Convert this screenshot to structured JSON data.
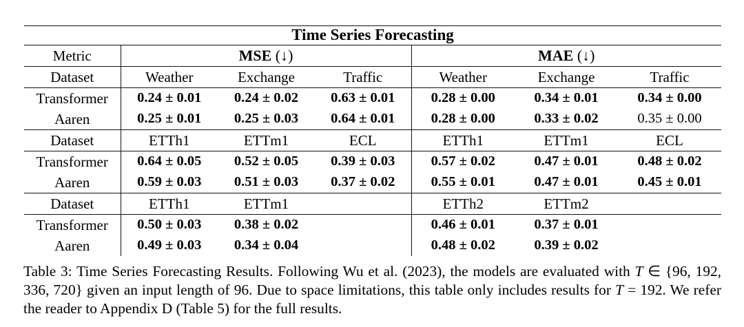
{
  "table": {
    "title": "Time Series Forecasting",
    "metric_label": "Metric",
    "dataset_label": "Dataset",
    "groups": [
      {
        "name": "MSE",
        "arrow": "(↓)"
      },
      {
        "name": "MAE",
        "arrow": "(↓)"
      }
    ],
    "blocks": [
      {
        "datasets": [
          "Weather",
          "Exchange",
          "Traffic",
          "Weather",
          "Exchange",
          "Traffic"
        ],
        "rows": [
          {
            "label": "Transformer",
            "values": [
              {
                "text": "0.24 ± 0.01",
                "bold": true
              },
              {
                "text": "0.24 ± 0.02",
                "bold": true
              },
              {
                "text": "0.63 ± 0.01",
                "bold": true
              },
              {
                "text": "0.28 ± 0.00",
                "bold": true
              },
              {
                "text": "0.34 ± 0.01",
                "bold": true
              },
              {
                "text": "0.34 ± 0.00",
                "bold": true
              }
            ]
          },
          {
            "label": "Aaren",
            "values": [
              {
                "text": "0.25 ± 0.01",
                "bold": true
              },
              {
                "text": "0.25 ± 0.03",
                "bold": true
              },
              {
                "text": "0.64 ± 0.01",
                "bold": true
              },
              {
                "text": "0.28 ± 0.00",
                "bold": true
              },
              {
                "text": "0.33 ± 0.02",
                "bold": true
              },
              {
                "text": "0.35 ± 0.00",
                "bold": false
              }
            ]
          }
        ]
      },
      {
        "datasets": [
          "ETTh1",
          "ETTm1",
          "ECL",
          "ETTh1",
          "ETTm1",
          "ECL"
        ],
        "rows": [
          {
            "label": "Transformer",
            "values": [
              {
                "text": "0.64 ± 0.05",
                "bold": true
              },
              {
                "text": "0.52 ± 0.05",
                "bold": true
              },
              {
                "text": "0.39 ± 0.03",
                "bold": true
              },
              {
                "text": "0.57 ± 0.02",
                "bold": true
              },
              {
                "text": "0.47 ± 0.01",
                "bold": true
              },
              {
                "text": "0.48 ± 0.02",
                "bold": true
              }
            ]
          },
          {
            "label": "Aaren",
            "values": [
              {
                "text": "0.59 ± 0.03",
                "bold": true
              },
              {
                "text": "0.51 ± 0.03",
                "bold": true
              },
              {
                "text": "0.37 ± 0.02",
                "bold": true
              },
              {
                "text": "0.55 ± 0.01",
                "bold": true
              },
              {
                "text": "0.47 ± 0.01",
                "bold": true
              },
              {
                "text": "0.45 ± 0.01",
                "bold": true
              }
            ]
          }
        ]
      },
      {
        "datasets": [
          "ETTh1",
          "ETTm1",
          "",
          "ETTh2",
          "ETTm2",
          ""
        ],
        "rows": [
          {
            "label": "Transformer",
            "values": [
              {
                "text": "0.50 ± 0.03",
                "bold": true
              },
              {
                "text": "0.38 ± 0.02",
                "bold": true
              },
              {
                "text": "",
                "bold": true
              },
              {
                "text": "0.46 ± 0.01",
                "bold": true
              },
              {
                "text": "0.37 ± 0.01",
                "bold": true
              },
              {
                "text": "",
                "bold": true
              }
            ]
          },
          {
            "label": "Aaren",
            "values": [
              {
                "text": "0.49 ± 0.03",
                "bold": true
              },
              {
                "text": "0.34 ± 0.04",
                "bold": true
              },
              {
                "text": "",
                "bold": true
              },
              {
                "text": "0.48 ± 0.02",
                "bold": true
              },
              {
                "text": "0.39 ± 0.02",
                "bold": true
              },
              {
                "text": "",
                "bold": true
              }
            ]
          }
        ]
      }
    ]
  },
  "caption": {
    "segments": [
      {
        "text": "Table 3: Time Series Forecasting Results. Following Wu et al. (2023), the models are evaluated with ",
        "italic": false
      },
      {
        "text": "T",
        "italic": true
      },
      {
        "text": " ∈ {96, 192, 336, 720} given an input length of 96. Due to space limitations, this table only includes results for ",
        "italic": false
      },
      {
        "text": "T",
        "italic": true
      },
      {
        "text": " = 192. We refer the reader to Appendix D (Table 5) for the full results.",
        "italic": false
      }
    ]
  }
}
